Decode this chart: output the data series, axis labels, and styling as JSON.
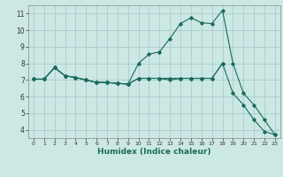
{
  "xlabel": "Humidex (Indice chaleur)",
  "bg_color": "#cce8e4",
  "grid_color": "#aacccc",
  "line_color": "#1a6b5a",
  "xlim": [
    -0.5,
    23.5
  ],
  "ylim": [
    3.5,
    11.5
  ],
  "xticks": [
    0,
    1,
    2,
    3,
    4,
    5,
    6,
    7,
    8,
    9,
    10,
    11,
    12,
    13,
    14,
    15,
    16,
    17,
    18,
    19,
    20,
    21,
    22,
    23
  ],
  "yticks": [
    4,
    5,
    6,
    7,
    8,
    9,
    10,
    11
  ],
  "line_a_x": [
    0,
    1,
    2,
    3,
    4,
    5,
    6,
    7,
    8,
    9,
    10,
    11,
    12,
    13,
    14,
    15,
    16,
    17,
    18
  ],
  "line_a_y": [
    7.05,
    7.05,
    7.75,
    7.25,
    7.15,
    7.0,
    6.85,
    6.85,
    6.8,
    6.75,
    7.1,
    7.1,
    7.1,
    7.1,
    7.1,
    7.1,
    7.1,
    7.1,
    8.0
  ],
  "line_b_x": [
    0,
    1,
    2,
    3,
    4,
    5,
    6,
    7,
    8,
    9,
    10,
    11,
    12,
    13,
    14,
    15,
    16,
    17,
    18,
    19,
    20,
    21,
    22,
    23
  ],
  "line_b_y": [
    7.05,
    7.05,
    7.75,
    7.25,
    7.15,
    7.0,
    6.85,
    6.85,
    6.8,
    6.75,
    8.0,
    8.55,
    8.7,
    9.5,
    10.4,
    10.75,
    10.45,
    10.4,
    11.2,
    8.0,
    6.2,
    5.5,
    4.6,
    3.7
  ],
  "line_c_x": [
    0,
    1,
    2,
    3,
    4,
    5,
    6,
    7,
    8,
    9,
    10,
    11,
    12,
    13,
    14,
    15,
    16,
    17,
    18,
    19,
    20,
    21,
    22,
    23
  ],
  "line_c_y": [
    7.05,
    7.05,
    7.75,
    7.25,
    7.15,
    7.0,
    6.85,
    6.85,
    6.8,
    6.75,
    7.1,
    7.1,
    7.1,
    7.0,
    7.1,
    7.1,
    7.1,
    7.1,
    8.0,
    6.2,
    5.5,
    4.6,
    3.9,
    3.7
  ]
}
